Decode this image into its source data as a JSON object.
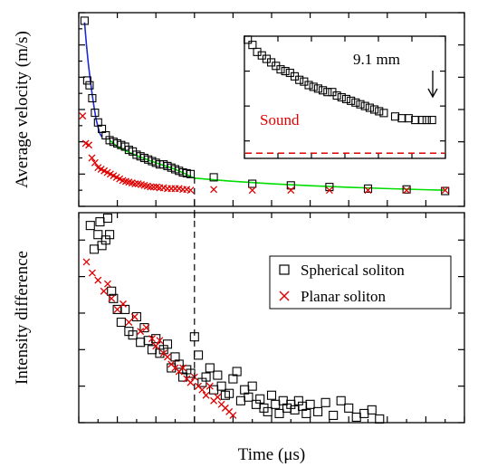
{
  "colors": {
    "spherical": "#000000",
    "planar": "#e00000",
    "fit_early": "#1a2bd6",
    "fit_late": "#00dd00",
    "sound": "#e00000"
  },
  "chart_data": [
    {
      "type": "scatter",
      "panel": "top",
      "xlim": [
        0,
        10
      ],
      "ylim": [
        200,
        1400
      ],
      "xlabel": "",
      "ylabel": "Average velocity (m/s)",
      "yticks": [
        "200",
        "400",
        "600",
        "800",
        "1000",
        "1200",
        "1400"
      ],
      "series": [
        {
          "name": "Spherical soliton",
          "marker": "square",
          "x": [
            0.15,
            0.22,
            0.28,
            0.35,
            0.42,
            0.5,
            0.6,
            0.7,
            0.8,
            0.9,
            1.0,
            1.1,
            1.2,
            1.3,
            1.4,
            1.5,
            1.6,
            1.7,
            1.8,
            1.9,
            2.0,
            2.1,
            2.2,
            2.3,
            2.4,
            2.5,
            2.6,
            2.7,
            2.8,
            2.9,
            3.5,
            4.5,
            5.5,
            6.5,
            7.5,
            8.5,
            9.5
          ],
          "y": [
            1350,
            980,
            950,
            870,
            780,
            720,
            680,
            640,
            610,
            600,
            590,
            580,
            570,
            550,
            540,
            520,
            510,
            500,
            490,
            480,
            470,
            460,
            460,
            450,
            440,
            430,
            420,
            410,
            405,
            400,
            380,
            340,
            330,
            320,
            310,
            305,
            295
          ]
        },
        {
          "name": "Planar soliton",
          "marker": "x",
          "x": [
            0.1,
            0.18,
            0.26,
            0.34,
            0.42,
            0.5,
            0.58,
            0.66,
            0.74,
            0.82,
            0.9,
            0.98,
            1.06,
            1.14,
            1.22,
            1.3,
            1.38,
            1.46,
            1.54,
            1.62,
            1.7,
            1.78,
            1.86,
            1.94,
            2.02,
            2.1,
            2.2,
            2.3,
            2.4,
            2.5,
            2.6,
            2.7,
            2.8,
            2.9,
            3.5,
            4.5,
            5.5,
            6.5,
            7.5,
            8.5,
            9.5
          ],
          "y": [
            760,
            590,
            580,
            500,
            470,
            440,
            430,
            420,
            410,
            400,
            390,
            380,
            370,
            360,
            355,
            350,
            345,
            340,
            340,
            335,
            330,
            325,
            320,
            320,
            320,
            315,
            315,
            310,
            310,
            310,
            310,
            305,
            305,
            300,
            305,
            300,
            300,
            300,
            300,
            300,
            300
          ]
        }
      ],
      "fits": [
        {
          "name": "early",
          "x": [
            0.15,
            0.2,
            0.25,
            0.3,
            0.35,
            0.4,
            0.45,
            0.5,
            0.55,
            0.6
          ],
          "y": [
            1340,
            1200,
            1080,
            980,
            890,
            810,
            740,
            690,
            650,
            630
          ]
        },
        {
          "name": "late",
          "x": [
            0.8,
            1.0,
            1.3,
            1.6,
            2.0,
            2.5,
            3.0,
            4.0,
            5.0,
            6.0,
            7.0,
            8.0,
            9.0,
            9.5
          ],
          "y": [
            610,
            570,
            535,
            505,
            470,
            430,
            375,
            355,
            340,
            328,
            318,
            310,
            303,
            300
          ]
        }
      ],
      "guide_line": {
        "x": 3
      }
    },
    {
      "type": "scatter",
      "panel": "inset",
      "xlim": [
        10,
        40
      ],
      "ylim": [
        230,
        300
      ],
      "xticks": [
        "10",
        "15",
        "20",
        "25",
        "30",
        "35",
        "40"
      ],
      "yticks": [
        "220",
        "240",
        "260",
        "280",
        "300"
      ],
      "annotation": "9.1 mm",
      "sound_label": "Sound",
      "sound_level": 233,
      "series": [
        {
          "name": "Spherical soliton",
          "marker": "square",
          "x": [
            10.5,
            11.2,
            11.9,
            12.6,
            13.3,
            14,
            14.7,
            15.4,
            16.1,
            16.8,
            17.5,
            18.2,
            18.9,
            19.6,
            20.3,
            21,
            21.7,
            22.4,
            23.1,
            23.8,
            24.5,
            25.2,
            25.9,
            26.6,
            27.3,
            28,
            28.7,
            29.4,
            30.1,
            30.8,
            32.5,
            33.5,
            34.5,
            35.5,
            36.5,
            37.2,
            38
          ],
          "y": [
            298,
            295,
            291,
            289,
            287,
            285,
            283,
            281,
            280,
            279,
            277,
            275,
            274,
            272,
            271,
            270,
            269,
            268,
            268,
            266,
            265,
            264,
            263,
            262,
            261,
            260,
            259,
            258,
            257,
            256,
            254,
            253,
            253,
            252,
            252,
            252,
            252
          ]
        }
      ]
    },
    {
      "type": "scatter",
      "panel": "bottom",
      "xlim": [
        0,
        10
      ],
      "ylim": [
        0,
        1.15
      ],
      "xlabel": "Time (μs)",
      "ylabel": "Intensity difference",
      "xticks": [
        "0",
        "1",
        "2",
        "3",
        "4",
        "5",
        "6",
        "7",
        "8",
        "9",
        "10"
      ],
      "yticks": [
        "0.00",
        "0.20",
        "0.40",
        "0.60",
        "0.80",
        "1.00"
      ],
      "legend": {
        "position": "top-right",
        "entries": [
          "Spherical soliton",
          "Planar soliton"
        ]
      },
      "series": [
        {
          "name": "Spherical soliton",
          "marker": "square",
          "x": [
            0.3,
            0.4,
            0.5,
            0.55,
            0.6,
            0.7,
            0.75,
            0.8,
            0.85,
            0.9,
            1.0,
            1.1,
            1.2,
            1.3,
            1.4,
            1.5,
            1.6,
            1.7,
            1.8,
            1.9,
            2.0,
            2.1,
            2.2,
            2.3,
            2.4,
            2.5,
            2.6,
            2.7,
            2.8,
            2.9,
            3.0,
            3.1,
            3.2,
            3.3,
            3.4,
            3.5,
            3.6,
            3.7,
            3.8,
            3.9,
            4.0,
            4.1,
            4.2,
            4.3,
            4.4,
            4.5,
            4.6,
            4.7,
            4.8,
            4.9,
            5.0,
            5.1,
            5.2,
            5.3,
            5.4,
            5.5,
            5.6,
            5.7,
            5.8,
            5.9,
            6.0,
            6.2,
            6.4,
            6.6,
            6.8,
            7.0,
            7.2,
            7.4,
            7.6,
            7.8
          ],
          "y": [
            1.08,
            0.95,
            1.03,
            1.1,
            0.97,
            1.0,
            1.12,
            1.03,
            0.72,
            0.68,
            0.62,
            0.55,
            0.62,
            0.5,
            0.48,
            0.58,
            0.44,
            0.52,
            0.45,
            0.4,
            0.46,
            0.38,
            0.4,
            0.43,
            0.3,
            0.36,
            0.32,
            0.25,
            0.29,
            0.27,
            0.47,
            0.37,
            0.22,
            0.25,
            0.3,
            0.18,
            0.26,
            0.2,
            0.15,
            0.16,
            0.24,
            0.28,
            0.12,
            0.18,
            0.14,
            0.2,
            0.1,
            0.13,
            0.08,
            0.06,
            0.15,
            0.1,
            0.05,
            0.12,
            0.08,
            0.1,
            0.07,
            0.12,
            0.09,
            0.05,
            0.1,
            0.06,
            0.11,
            0.04,
            0.12,
            0.08,
            0.03,
            0.05,
            0.07,
            0.02
          ]
        },
        {
          "name": "Planar soliton",
          "marker": "x",
          "x": [
            0.2,
            0.35,
            0.5,
            0.65,
            0.75,
            0.85,
            1.0,
            1.15,
            1.3,
            1.45,
            1.6,
            1.75,
            1.9,
            2.0,
            2.1,
            2.2,
            2.3,
            2.4,
            2.5,
            2.6,
            2.7,
            2.8,
            2.9,
            3.0,
            3.1,
            3.2,
            3.3,
            3.4,
            3.5,
            3.6,
            3.7,
            3.8,
            3.9,
            4.0
          ],
          "y": [
            0.88,
            0.82,
            0.78,
            0.72,
            0.76,
            0.68,
            0.62,
            0.65,
            0.55,
            0.58,
            0.5,
            0.52,
            0.46,
            0.42,
            0.45,
            0.38,
            0.36,
            0.32,
            0.3,
            0.28,
            0.3,
            0.24,
            0.22,
            0.25,
            0.2,
            0.18,
            0.15,
            0.2,
            0.12,
            0.14,
            0.1,
            0.08,
            0.06,
            0.04
          ]
        }
      ],
      "guide_line": {
        "x": 3
      }
    }
  ]
}
